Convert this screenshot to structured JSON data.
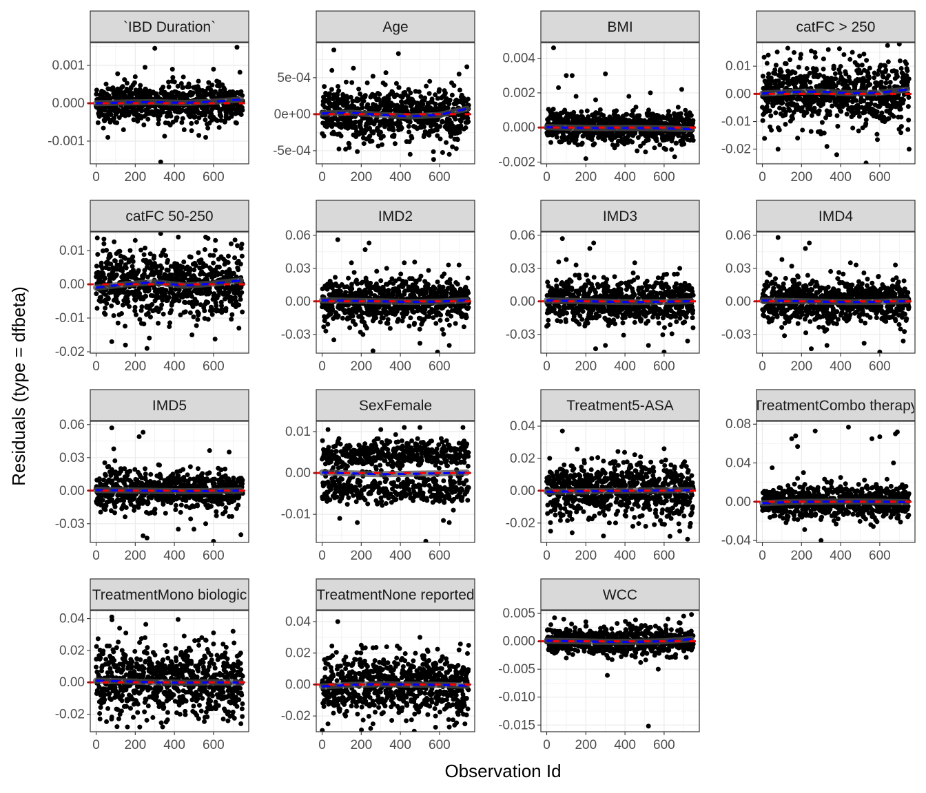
{
  "chart_data": {
    "type": "scatter",
    "title": "",
    "xlabel": "Observation Id",
    "ylabel": "Residuals (type = dfbeta)",
    "n_observations": 750,
    "xlim": [
      -30,
      780
    ],
    "x_ticks": [
      0,
      200,
      400,
      600
    ],
    "x_tick_labels": [
      "0",
      "200",
      "400",
      "600"
    ],
    "layers": {
      "points": "black dots, one per observation",
      "smooth": "grey loess band near zero",
      "trend": "blue dashed fitted line",
      "zero_line": "red dashed horizontal reference line at y = 0"
    },
    "colors": {
      "strip_fill": "#d9d9d9",
      "strip_border": "#333333",
      "panel_border": "#333333",
      "grid": "#ebebeb",
      "points": "#000000",
      "trend_line": "#0000ff",
      "zero_line": "#ff0000",
      "smooth_band": "#4d4d4d"
    },
    "facets": [
      {
        "label": "`IBD Duration`",
        "ylim": [
          -0.0016,
          0.0016
        ],
        "y_ticks": [
          -0.001,
          0,
          0.001
        ],
        "y_tick_labels": [
          "-0.001",
          "0.000",
          "0.001"
        ],
        "spread": 0.00025,
        "trend": [
          0,
          2e-05,
          3e-05,
          1e-05,
          4e-05,
          0.0001
        ],
        "outliers": [
          [
            330,
            -0.00155
          ],
          [
            720,
            0.00148
          ],
          [
            300,
            0.00145
          ],
          [
            250,
            0.00095
          ],
          [
            390,
            0.0009
          ],
          [
            110,
            0.00078
          ],
          [
            600,
            0.0009
          ],
          [
            560,
            -0.0009
          ],
          [
            60,
            -0.0009
          ],
          [
            200,
            0.0007
          ],
          [
            450,
            -0.0007
          ],
          [
            140,
            -0.0007
          ]
        ]
      },
      {
        "label": "Age",
        "ylim": [
          -0.00068,
          0.00098
        ],
        "y_ticks": [
          -0.0005,
          0,
          0.0005
        ],
        "y_tick_labels": [
          "-5e-04",
          "0e+00",
          "5e-04"
        ],
        "spread": 0.00018,
        "trend": [
          1e-05,
          2e-05,
          -1e-05,
          -3e-05,
          -1e-05,
          8e-05
        ],
        "outliers": [
          [
            60,
            0.00088
          ],
          [
            390,
            0.00083
          ],
          [
            570,
            -0.00062
          ],
          [
            740,
            0.00065
          ],
          [
            50,
            0.0006
          ],
          [
            160,
            0.00063
          ],
          [
            260,
            0.00052
          ],
          [
            450,
            -0.00055
          ],
          [
            650,
            -0.00055
          ],
          [
            120,
            -0.00048
          ],
          [
            700,
            0.00055
          ],
          [
            550,
            0.00045
          ]
        ]
      },
      {
        "label": "BMI",
        "ylim": [
          -0.0021,
          0.0049
        ],
        "y_ticks": [
          -0.002,
          0,
          0.002,
          0.004
        ],
        "y_tick_labels": [
          "-0.002",
          "0.000",
          "0.002",
          "0.004"
        ],
        "spread": 0.00045,
        "trend": [
          2e-05,
          -2e-05,
          -4e-05,
          -3e-05,
          -5e-05,
          -0.0001
        ],
        "outliers": [
          [
            35,
            0.0046
          ],
          [
            100,
            0.003
          ],
          [
            300,
            0.0031
          ],
          [
            130,
            0.003
          ],
          [
            60,
            0.0023
          ],
          [
            200,
            -0.0018
          ],
          [
            530,
            0.002
          ],
          [
            690,
            0.0022
          ],
          [
            420,
            0.0018
          ],
          [
            150,
            0.0018
          ],
          [
            600,
            -0.0012
          ],
          [
            250,
            0.0016
          ]
        ]
      },
      {
        "label": "catFC > 250",
        "ylim": [
          -0.0253,
          0.0185
        ],
        "y_ticks": [
          -0.02,
          -0.01,
          0,
          0.01
        ],
        "y_tick_labels": [
          "-0.02",
          "-0.01",
          "0.00",
          "0.01"
        ],
        "spread": 0.0055,
        "trend": [
          0.0001,
          0.0007,
          0.0008,
          0.0002,
          0.0004,
          0.0016
        ],
        "outliers": [
          [
            130,
            0.0165
          ],
          [
            530,
            -0.025
          ],
          [
            750,
            -0.02
          ],
          [
            80,
            -0.02
          ],
          [
            380,
            -0.022
          ],
          [
            250,
            0.0155
          ],
          [
            640,
            0.0175
          ],
          [
            700,
            0.018
          ],
          [
            330,
            -0.019
          ],
          [
            30,
            0.014
          ],
          [
            460,
            0.015
          ],
          [
            180,
            -0.016
          ]
        ]
      },
      {
        "label": "catFC 50-250",
        "ylim": [
          -0.0204,
          0.0155
        ],
        "y_ticks": [
          -0.02,
          -0.01,
          0,
          0.01
        ],
        "y_tick_labels": [
          "-0.02",
          "-0.01",
          "0.00",
          "0.01"
        ],
        "spread": 0.0048,
        "trend": [
          -0.001,
          0,
          0.0006,
          -0.0004,
          0.0002,
          0.0012
        ],
        "outliers": [
          [
            330,
            0.015
          ],
          [
            260,
            -0.019
          ],
          [
            80,
            -0.017
          ],
          [
            150,
            -0.018
          ],
          [
            420,
            0.014
          ],
          [
            560,
            0.014
          ],
          [
            730,
            -0.013
          ],
          [
            610,
            0.013
          ],
          [
            40,
            0.012
          ],
          [
            200,
            0.013
          ],
          [
            490,
            -0.015
          ],
          [
            690,
            0.012
          ]
        ]
      },
      {
        "label": "IMD2",
        "ylim": [
          -0.047,
          0.063
        ],
        "y_ticks": [
          -0.03,
          0,
          0.03,
          0.06
        ],
        "y_tick_labels": [
          "-0.03",
          "0.00",
          "0.03",
          "0.06"
        ],
        "spread": 0.01,
        "trend": [
          0.001,
          0.0005,
          0,
          -0.0005,
          -0.0002,
          0.001
        ],
        "outliers": [
          [
            80,
            0.056
          ],
          [
            240,
            0.053
          ],
          [
            590,
            -0.046
          ],
          [
            220,
            0.047
          ],
          [
            260,
            -0.045
          ],
          [
            60,
            -0.035
          ],
          [
            420,
            0.035
          ],
          [
            700,
            0.033
          ],
          [
            150,
            0.035
          ],
          [
            500,
            -0.038
          ],
          [
            330,
            0.03
          ],
          [
            650,
            -0.04
          ]
        ]
      },
      {
        "label": "IMD3",
        "ylim": [
          -0.047,
          0.063
        ],
        "y_ticks": [
          -0.03,
          0,
          0.03,
          0.06
        ],
        "y_tick_labels": [
          "-0.03",
          "0.00",
          "0.03",
          "0.06"
        ],
        "spread": 0.01,
        "trend": [
          0.0008,
          0.0003,
          -0.0003,
          -0.0006,
          -0.0004,
          0.0002
        ],
        "outliers": [
          [
            80,
            0.057
          ],
          [
            240,
            0.053
          ],
          [
            600,
            -0.046
          ],
          [
            220,
            0.048
          ],
          [
            100,
            0.038
          ],
          [
            250,
            -0.043
          ],
          [
            300,
            -0.04
          ],
          [
            720,
            -0.036
          ],
          [
            450,
            0.035
          ],
          [
            520,
            -0.04
          ],
          [
            150,
            0.033
          ],
          [
            680,
            0.03
          ]
        ]
      },
      {
        "label": "IMD4",
        "ylim": [
          -0.047,
          0.063
        ],
        "y_ticks": [
          -0.03,
          0,
          0.03,
          0.06
        ],
        "y_tick_labels": [
          "-0.03",
          "0.00",
          "0.03",
          "0.06"
        ],
        "spread": 0.01,
        "trend": [
          0.0008,
          0.0003,
          -0.0003,
          -0.0006,
          -0.0004,
          0.0002
        ],
        "outliers": [
          [
            80,
            0.058
          ],
          [
            240,
            0.053
          ],
          [
            600,
            -0.046
          ],
          [
            220,
            0.048
          ],
          [
            100,
            0.038
          ],
          [
            250,
            -0.043
          ],
          [
            330,
            -0.04
          ],
          [
            720,
            -0.036
          ],
          [
            450,
            0.035
          ],
          [
            520,
            -0.038
          ],
          [
            150,
            0.032
          ],
          [
            680,
            0.033
          ]
        ]
      },
      {
        "label": "IMD5",
        "ylim": [
          -0.047,
          0.063
        ],
        "y_ticks": [
          -0.03,
          0,
          0.03,
          0.06
        ],
        "y_tick_labels": [
          "-0.03",
          "0.00",
          "0.03",
          "0.06"
        ],
        "spread": 0.0085,
        "trend": [
          0.0006,
          0.0002,
          -0.0002,
          -0.0005,
          -0.0003,
          0.0001
        ],
        "outliers": [
          [
            80,
            0.057
          ],
          [
            240,
            0.053
          ],
          [
            600,
            -0.046
          ],
          [
            220,
            0.049
          ],
          [
            90,
            0.038
          ],
          [
            260,
            -0.043
          ],
          [
            240,
            -0.041
          ],
          [
            740,
            -0.04
          ],
          [
            500,
            -0.035
          ],
          [
            560,
            -0.03
          ],
          [
            680,
            0.035
          ],
          [
            420,
            -0.035
          ]
        ]
      },
      {
        "label": "SexFemale",
        "ylim": [
          -0.0168,
          0.0125
        ],
        "y_ticks": [
          -0.01,
          0,
          0.01
        ],
        "y_tick_labels": [
          "-0.01",
          "0.00",
          "0.01"
        ],
        "spread": 0.0045,
        "trend": [
          0.0001,
          -0.0001,
          -0.0003,
          -0.0002,
          -0.0001,
          0.0001
        ],
        "outliers": [
          [
            530,
            -0.0165
          ],
          [
            720,
            0.011
          ],
          [
            30,
            0.0105
          ],
          [
            420,
            0.011
          ],
          [
            180,
            -0.012
          ],
          [
            620,
            -0.0115
          ],
          [
            300,
            0.0105
          ],
          [
            90,
            -0.011
          ],
          [
            500,
            0.011
          ],
          [
            650,
            -0.012
          ]
        ]
      },
      {
        "label": "Treatment5-ASA",
        "ylim": [
          -0.032,
          0.043
        ],
        "y_ticks": [
          -0.02,
          0,
          0.02,
          0.04
        ],
        "y_tick_labels": [
          "-0.02",
          "0.00",
          "0.02",
          "0.04"
        ],
        "spread": 0.0085,
        "trend": [
          -0.0006,
          -0.0004,
          -0.0002,
          0,
          0.0002,
          0.0004
        ],
        "outliers": [
          [
            80,
            0.037
          ],
          [
            290,
            -0.028
          ],
          [
            720,
            -0.03
          ],
          [
            20,
            -0.025
          ],
          [
            600,
            0.026
          ],
          [
            130,
            -0.026
          ],
          [
            440,
            -0.022
          ],
          [
            230,
            0.02
          ],
          [
            680,
            -0.025
          ],
          [
            350,
            0.018
          ],
          [
            550,
            -0.021
          ],
          [
            480,
            0.021
          ]
        ]
      },
      {
        "label": "TreatmentCombo therapy",
        "ylim": [
          -0.042,
          0.083
        ],
        "y_ticks": [
          -0.04,
          0,
          0.04,
          0.08
        ],
        "y_tick_labels": [
          "-0.04",
          "0.00",
          "0.04",
          "0.08"
        ],
        "spread": 0.0085,
        "trend": [
          -0.0015,
          -0.0003,
          0,
          0.0003,
          0,
          -0.0005
        ],
        "outliers": [
          [
            440,
            0.077
          ],
          [
            270,
            0.073
          ],
          [
            150,
            0.065
          ],
          [
            170,
            0.068
          ],
          [
            560,
            0.065
          ],
          [
            680,
            0.07
          ],
          [
            600,
            0.067
          ],
          [
            690,
            0.072
          ],
          [
            180,
            0.057
          ],
          [
            50,
            0.035
          ],
          [
            300,
            -0.04
          ],
          [
            210,
            0.03
          ],
          [
            400,
            0.025
          ],
          [
            670,
            0.04
          ]
        ]
      },
      {
        "label": "TreatmentMono biologic",
        "ylim": [
          -0.031,
          0.045
        ],
        "y_ticks": [
          -0.02,
          0,
          0.02,
          0.04
        ],
        "y_tick_labels": [
          "-0.02",
          "0.00",
          "0.02",
          "0.04"
        ],
        "spread": 0.011,
        "trend": [
          0.001,
          0.0006,
          0,
          -0.0003,
          0,
          -0.0002
        ],
        "outliers": [
          [
            80,
            0.041
          ],
          [
            120,
            0.034
          ],
          [
            600,
            0.031
          ],
          [
            700,
            0.032
          ],
          [
            160,
            -0.028
          ],
          [
            340,
            -0.028
          ],
          [
            740,
            -0.026
          ],
          [
            20,
            -0.023
          ],
          [
            450,
            0.029
          ],
          [
            250,
            0.028
          ],
          [
            540,
            0.028
          ],
          [
            650,
            -0.023
          ]
        ]
      },
      {
        "label": "TreatmentNone reported",
        "ylim": [
          -0.03,
          0.047
        ],
        "y_ticks": [
          -0.02,
          0,
          0.02,
          0.04
        ],
        "y_tick_labels": [
          "-0.02",
          "0.00",
          "0.02",
          "0.04"
        ],
        "spread": 0.0095,
        "trend": [
          -0.0012,
          -0.0002,
          0.0002,
          0,
          -0.0002,
          -0.0008
        ],
        "outliers": [
          [
            80,
            0.04
          ],
          [
            30,
            -0.025
          ],
          [
            260,
            -0.025
          ],
          [
            650,
            -0.027
          ],
          [
            430,
            -0.023
          ],
          [
            500,
            0.03
          ],
          [
            200,
            0.025
          ],
          [
            580,
            -0.02
          ],
          [
            330,
            0.024
          ],
          [
            700,
            0.022
          ],
          [
            120,
            -0.02
          ],
          [
            730,
            -0.025
          ]
        ]
      },
      {
        "label": "WCC",
        "ylim": [
          -0.0162,
          0.0055
        ],
        "y_ticks": [
          -0.015,
          -0.01,
          -0.005,
          0,
          0.005
        ],
        "y_tick_labels": [
          "-0.015",
          "-0.010",
          "-0.005",
          "0.000",
          "0.005"
        ],
        "spread": 0.0012,
        "trend": [
          0.0001,
          0,
          -0.0001,
          -0.0001,
          0,
          0.0004
        ],
        "outliers": [
          [
            520,
            -0.0152
          ],
          [
            310,
            -0.0061
          ],
          [
            570,
            -0.005
          ],
          [
            740,
            0.0048
          ],
          [
            700,
            0.0045
          ],
          [
            40,
            0.0042
          ],
          [
            620,
            0.004
          ],
          [
            200,
            0.0035
          ],
          [
            480,
            -0.0038
          ],
          [
            360,
            0.0032
          ],
          [
            100,
            -0.003
          ]
        ]
      }
    ]
  }
}
